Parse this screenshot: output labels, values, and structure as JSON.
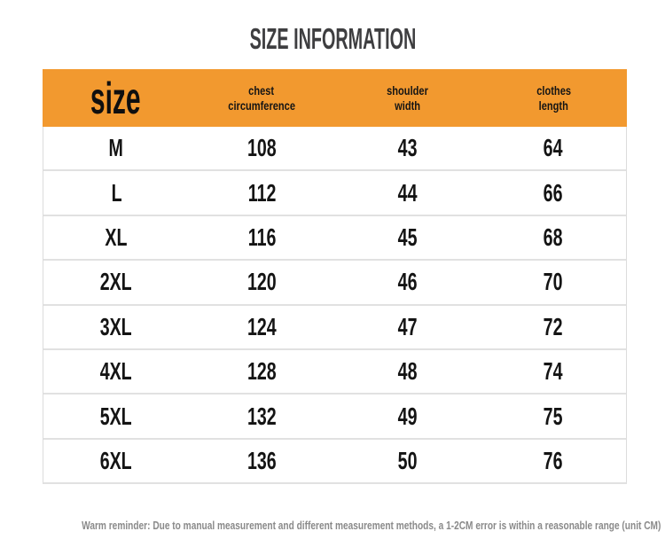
{
  "page": {
    "title": "SIZE INFORMATION",
    "footer_note": "Warm reminder: Due to manual measurement and different measurement methods, a 1-2CM error is within a reasonable range (unit CM)"
  },
  "table": {
    "header": {
      "size_label": "size",
      "columns": [
        {
          "line1": "chest",
          "line2": "circumference"
        },
        {
          "line1": "shoulder",
          "line2": "width"
        },
        {
          "line1": "clothes",
          "line2": "length"
        }
      ]
    },
    "rows": [
      {
        "size": "M",
        "chest": "108",
        "shoulder": "43",
        "length": "64"
      },
      {
        "size": "L",
        "chest": "112",
        "shoulder": "44",
        "length": "66"
      },
      {
        "size": "XL",
        "chest": "116",
        "shoulder": "45",
        "length": "68"
      },
      {
        "size": "2XL",
        "chest": "120",
        "shoulder": "46",
        "length": "70"
      },
      {
        "size": "3XL",
        "chest": "124",
        "shoulder": "47",
        "length": "72"
      },
      {
        "size": "4XL",
        "chest": "128",
        "shoulder": "48",
        "length": "74"
      },
      {
        "size": "5XL",
        "chest": "132",
        "shoulder": "49",
        "length": "75"
      },
      {
        "size": "6XL",
        "chest": "136",
        "shoulder": "50",
        "length": "76"
      }
    ]
  },
  "colors": {
    "header_bg": "#F2992F",
    "title_text": "#3E3E40",
    "body_text": "#141414",
    "muted_text": "#8A8A8A",
    "row_divider": "#E1E1E1"
  },
  "chart_data": {
    "type": "table",
    "title": "SIZE INFORMATION",
    "columns": [
      "size",
      "chest circumference",
      "shoulder width",
      "clothes length"
    ],
    "rows": [
      [
        "M",
        108,
        43,
        64
      ],
      [
        "L",
        112,
        44,
        66
      ],
      [
        "XL",
        116,
        45,
        68
      ],
      [
        "2XL",
        120,
        46,
        70
      ],
      [
        "3XL",
        124,
        47,
        72
      ],
      [
        "4XL",
        128,
        48,
        74
      ],
      [
        "5XL",
        132,
        49,
        75
      ],
      [
        "6XL",
        136,
        50,
        76
      ]
    ],
    "unit": "CM",
    "note": "1-2CM error is within a reasonable range due to manual measurement"
  }
}
